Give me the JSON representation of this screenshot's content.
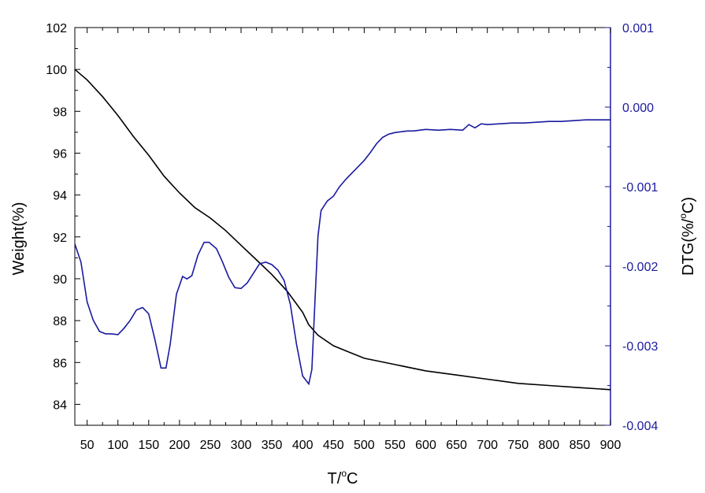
{
  "chart_data": {
    "type": "line",
    "xlabel": "T/",
    "xlabel_deg": "o",
    "xlabel_unit": "C",
    "ylabel_left": "Weight(%)",
    "ylabel_right_pre": "DTG(%/",
    "ylabel_right_deg": "o",
    "ylabel_right_post": "C)",
    "xlim": [
      30,
      900
    ],
    "ylim_left": [
      83,
      102
    ],
    "ylim_right": [
      -0.004,
      0.001
    ],
    "x_ticks": [
      "50",
      "100",
      "150",
      "200",
      "250",
      "300",
      "350",
      "400",
      "450",
      "500",
      "550",
      "600",
      "650",
      "700",
      "750",
      "800",
      "850",
      "900"
    ],
    "y_left_ticks": [
      "84",
      "86",
      "88",
      "90",
      "92",
      "94",
      "96",
      "98",
      "100",
      "102"
    ],
    "y_right_ticks": [
      "-0.004",
      "-0.003",
      "-0.002",
      "-0.001",
      "0.000",
      "0.001"
    ],
    "colors": {
      "weight": "#000000",
      "dtg": "#1a1aa0",
      "right_axis": "#1a1aa0"
    },
    "series": [
      {
        "axis": "left",
        "x": [
          30,
          50,
          75,
          100,
          125,
          150,
          175,
          200,
          225,
          250,
          275,
          300,
          325,
          350,
          375,
          400,
          410,
          425,
          450,
          475,
          500,
          550,
          600,
          650,
          700,
          750,
          800,
          850,
          900
        ],
        "values": [
          100.0,
          99.5,
          98.7,
          97.8,
          96.8,
          95.9,
          94.9,
          94.1,
          93.4,
          92.9,
          92.3,
          91.6,
          90.9,
          90.2,
          89.4,
          88.4,
          87.8,
          87.3,
          86.8,
          86.5,
          86.2,
          85.9,
          85.6,
          85.4,
          85.2,
          85.0,
          84.9,
          84.8,
          84.7
        ]
      },
      {
        "axis": "right",
        "x": [
          30,
          40,
          50,
          60,
          70,
          80,
          90,
          100,
          110,
          120,
          130,
          140,
          150,
          160,
          170,
          178,
          185,
          195,
          205,
          212,
          220,
          230,
          240,
          248,
          260,
          270,
          280,
          290,
          300,
          310,
          320,
          330,
          340,
          350,
          360,
          370,
          380,
          390,
          400,
          410,
          415,
          420,
          425,
          430,
          440,
          450,
          460,
          470,
          480,
          490,
          500,
          510,
          520,
          530,
          540,
          550,
          560,
          570,
          580,
          590,
          600,
          620,
          640,
          660,
          670,
          680,
          690,
          700,
          720,
          740,
          760,
          780,
          800,
          820,
          840,
          860,
          880,
          900
        ],
        "values": [
          -0.00172,
          -0.00195,
          -0.00245,
          -0.00268,
          -0.00282,
          -0.00285,
          -0.00285,
          -0.00286,
          -0.00278,
          -0.00268,
          -0.00255,
          -0.00252,
          -0.0026,
          -0.00292,
          -0.00328,
          -0.00328,
          -0.00298,
          -0.00235,
          -0.00213,
          -0.00216,
          -0.00212,
          -0.00186,
          -0.0017,
          -0.0017,
          -0.00178,
          -0.00195,
          -0.00214,
          -0.00227,
          -0.00228,
          -0.00221,
          -0.00209,
          -0.00197,
          -0.00195,
          -0.00198,
          -0.00205,
          -0.00218,
          -0.00248,
          -0.00298,
          -0.00338,
          -0.00348,
          -0.0033,
          -0.00245,
          -0.00162,
          -0.0013,
          -0.00118,
          -0.00112,
          -0.001,
          -0.00091,
          -0.00083,
          -0.00075,
          -0.00067,
          -0.00057,
          -0.00046,
          -0.00038,
          -0.00034,
          -0.00032,
          -0.00031,
          -0.0003,
          -0.0003,
          -0.00029,
          -0.00028,
          -0.00029,
          -0.00028,
          -0.00029,
          -0.00022,
          -0.00026,
          -0.00021,
          -0.00022,
          -0.00021,
          -0.0002,
          -0.0002,
          -0.00019,
          -0.00018,
          -0.00018,
          -0.00017,
          -0.00016,
          -0.00016,
          -0.00016
        ]
      }
    ]
  }
}
